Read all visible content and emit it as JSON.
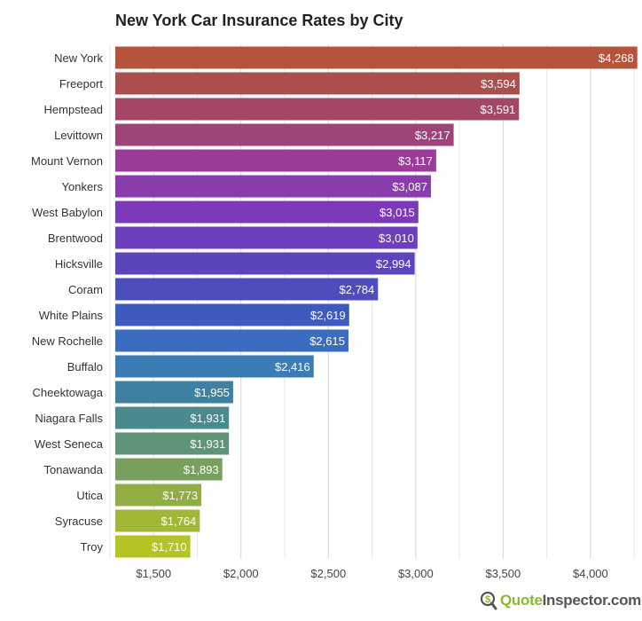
{
  "chart_data": {
    "type": "bar",
    "orientation": "horizontal",
    "title": "New York Car Insurance Rates by City",
    "categories": [
      "New York",
      "Freeport",
      "Hempstead",
      "Levittown",
      "Mount Vernon",
      "Yonkers",
      "West Babylon",
      "Brentwood",
      "Hicksville",
      "Coram",
      "White Plains",
      "New Rochelle",
      "Buffalo",
      "Cheektowaga",
      "Niagara Falls",
      "West Seneca",
      "Tonawanda",
      "Utica",
      "Syracuse",
      "Troy"
    ],
    "values": [
      4268,
      3594,
      3591,
      3217,
      3117,
      3087,
      3015,
      3010,
      2994,
      2784,
      2619,
      2615,
      2416,
      1955,
      1931,
      1931,
      1893,
      1773,
      1764,
      1710
    ],
    "data_labels": [
      "$4,268",
      "$3,594",
      "$3,591",
      "$3,217",
      "$3,117",
      "$3,087",
      "$3,015",
      "$3,010",
      "$2,994",
      "$2,784",
      "$2,619",
      "$2,615",
      "$2,416",
      "$1,955",
      "$1,931",
      "$1,931",
      "$1,893",
      "$1,773",
      "$1,764",
      "$1,710"
    ],
    "colors": [
      "#b5533c",
      "#ab4f4e",
      "#a44767",
      "#9e4479",
      "#9a3c98",
      "#8a3cae",
      "#7c3ab9",
      "#6d3ebd",
      "#5d44bd",
      "#4e4dbe",
      "#3f5abf",
      "#3a6cbf",
      "#3b7cb5",
      "#3e80a0",
      "#4a8a8c",
      "#5f9478",
      "#77a05f",
      "#92ad43",
      "#a2b735",
      "#b5c424"
    ],
    "xlim": [
      1250,
      4300
    ],
    "xticks": [
      1500,
      2000,
      2500,
      3000,
      3500,
      4000
    ],
    "xtick_labels": [
      "$1,500",
      "$2,000",
      "$2,500",
      "$3,000",
      "$3,500",
      "$4,000"
    ],
    "grid": true,
    "xlabel": "",
    "ylabel": ""
  },
  "logo": {
    "part1": "Quote",
    "part2": "Inspector.com"
  }
}
